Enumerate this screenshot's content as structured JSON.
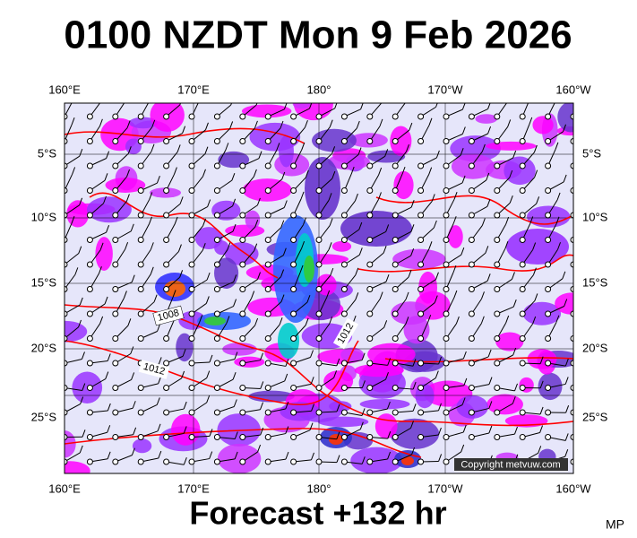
{
  "header": {
    "title": "0100 NZDT Mon 9 Feb 2026"
  },
  "map": {
    "top_labels": [
      "160°E",
      "170°E",
      "180°",
      "170°W",
      "160°W"
    ],
    "bottom_labels": [
      "160°E",
      "170°E",
      "180°",
      "170°W",
      "160°W"
    ],
    "left_labels": [
      "5°S",
      "10°S",
      "15°S",
      "20°S",
      "25°S"
    ],
    "right_labels": [
      "5°S",
      "10°S",
      "15°S",
      "20°S",
      "25°S"
    ],
    "isobar_labels": [
      "1008",
      "1012",
      "1012"
    ],
    "copyright": "Copyright metvuw.com"
  },
  "footer": {
    "title": "Forecast +132 hr",
    "initials": "MP"
  }
}
